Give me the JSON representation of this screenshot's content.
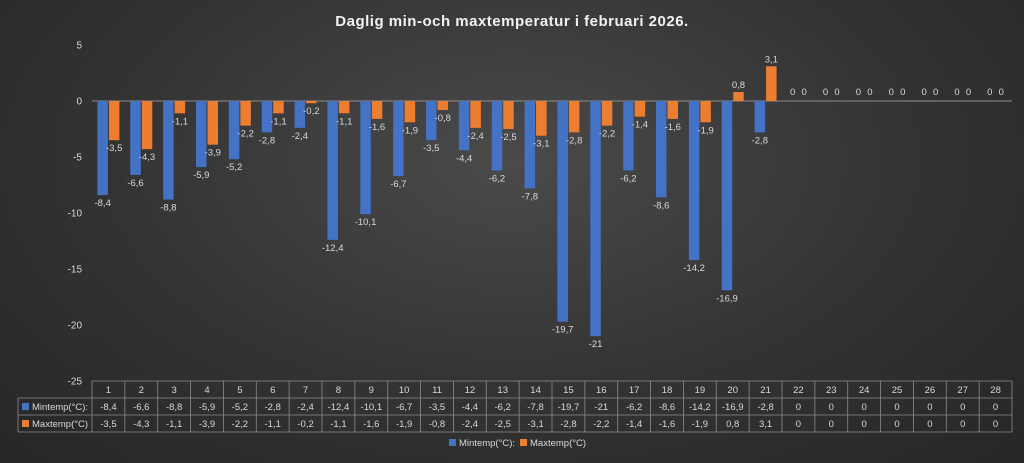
{
  "chart_data": {
    "type": "bar",
    "title": "Daglig min-och maxtemperatur i februari 2026.",
    "categories": [
      "1",
      "2",
      "3",
      "4",
      "5",
      "6",
      "7",
      "8",
      "9",
      "10",
      "11",
      "12",
      "13",
      "14",
      "15",
      "16",
      "17",
      "18",
      "19",
      "20",
      "21",
      "22",
      "23",
      "24",
      "25",
      "26",
      "27",
      "28"
    ],
    "series": [
      {
        "name": "Mintemp(°C):",
        "color": "#4472c4",
        "values": [
          -8.4,
          -6.6,
          -8.8,
          -5.9,
          -5.2,
          -2.8,
          -2.4,
          -12.4,
          -10.1,
          -6.7,
          -3.5,
          -4.4,
          -6.2,
          -7.8,
          -19.7,
          -21,
          -6.2,
          -8.6,
          -14.2,
          -16.9,
          -2.8,
          0,
          0,
          0,
          0,
          0,
          0,
          0
        ],
        "labels": [
          "-8,4",
          "-6,6",
          "-8,8",
          "-5,9",
          "-5,2",
          "-2,8",
          "-2,4",
          "-12,4",
          "-10,1",
          "-6,7",
          "-3,5",
          "-4,4",
          "-6,2",
          "-7,8",
          "-19,7",
          "-21",
          "-6,2",
          "-8,6",
          "-14,2",
          "-16,9",
          "-2,8",
          "0",
          "0",
          "0",
          "0",
          "0",
          "0",
          "0"
        ]
      },
      {
        "name": "Maxtemp(°C)",
        "color": "#ed7d31",
        "values": [
          -3.5,
          -4.3,
          -1.1,
          -3.9,
          -2.2,
          -1.1,
          -0.2,
          -1.1,
          -1.6,
          -1.9,
          -0.8,
          -2.4,
          -2.5,
          -3.1,
          -2.8,
          -2.2,
          -1.4,
          -1.6,
          -1.9,
          0.8,
          3.1,
          0,
          0,
          0,
          0,
          0,
          0,
          0
        ],
        "labels": [
          "-3,5",
          "-4,3",
          "-1,1",
          "-3,9",
          "-2,2",
          "-1,1",
          "-0,2",
          "-1,1",
          "-1,6",
          "-1,9",
          "-0,8",
          "-2,4",
          "-2,5",
          "-3,1",
          "-2,8",
          "-2,2",
          "-1,4",
          "-1,6",
          "-1,9",
          "0,8",
          "3,1",
          "0",
          "0",
          "0",
          "0",
          "0",
          "0",
          "0"
        ]
      }
    ],
    "yticks": [
      5,
      0,
      -5,
      -10,
      -15,
      -20,
      -25
    ],
    "ytick_labels": [
      "5",
      "0",
      "-5",
      "-10",
      "-15",
      "-20",
      "-25"
    ],
    "ylim": [
      -25,
      5
    ],
    "grid": false,
    "legend": "bottom",
    "data_table": true
  }
}
